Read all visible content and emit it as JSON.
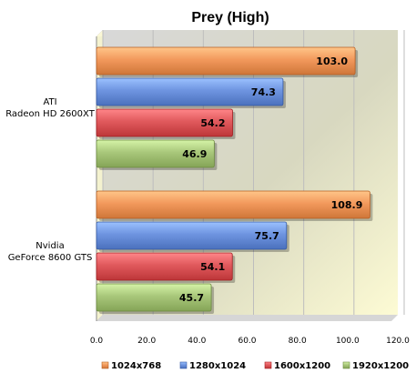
{
  "chart_data": {
    "type": "bar",
    "orientation": "horizontal",
    "title": "Prey  (High)",
    "xlabel": "",
    "ylabel": "",
    "xlim": [
      0,
      120
    ],
    "tick_values": [
      0,
      20,
      40,
      60,
      80,
      100,
      120
    ],
    "tick_labels": [
      "0.0",
      "20.0",
      "40.0",
      "60.0",
      "80.0",
      "100.0",
      "120.0"
    ],
    "categories": [
      {
        "lines": [
          "ATI",
          "Radeon HD 2600XT"
        ]
      },
      {
        "lines": [
          "Nvidia",
          "GeForce 8600 GTS"
        ]
      }
    ],
    "series": [
      {
        "name": "1024x768",
        "color": "#f2995c",
        "values": [
          103.0,
          108.9
        ],
        "value_labels": [
          "103.0",
          "108.9"
        ]
      },
      {
        "name": "1280x1024",
        "color": "#6e94e0",
        "values": [
          74.3,
          75.7
        ],
        "value_labels": [
          "74.3",
          "75.7"
        ]
      },
      {
        "name": "1600x1200",
        "color": "#e0595c",
        "values": [
          54.2,
          54.1
        ],
        "value_labels": [
          "54.2",
          "54.1"
        ]
      },
      {
        "name": "1920x1200",
        "color": "#a8c77a",
        "values": [
          46.9,
          45.7
        ],
        "value_labels": [
          "46.9",
          "45.7"
        ]
      }
    ],
    "grid": true,
    "legend": "bottom"
  }
}
